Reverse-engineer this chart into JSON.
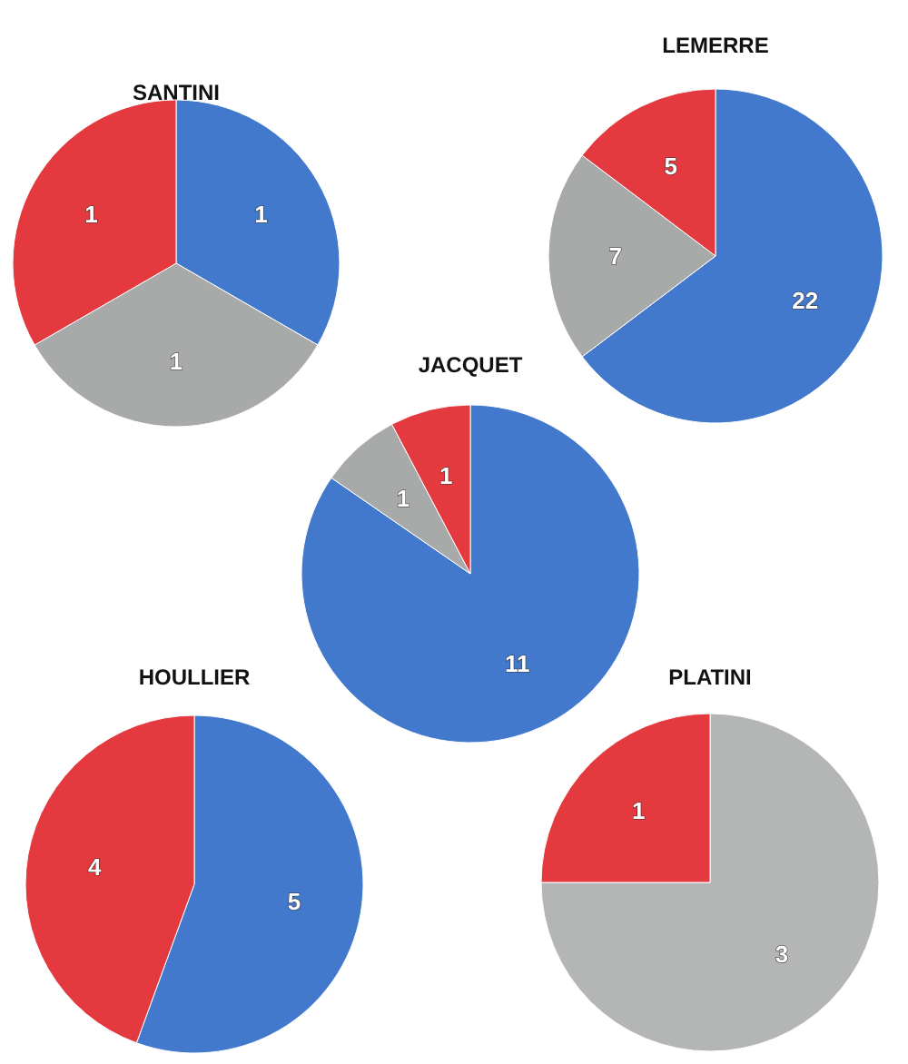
{
  "chart_data": [
    {
      "type": "pie",
      "title": "SANTINI",
      "categories": [
        null,
        null,
        null
      ],
      "values": [
        1,
        1,
        1
      ],
      "colors": [
        "#4379cc",
        "#a8aaaa",
        "#e4393f"
      ],
      "data_labels": true
    },
    {
      "type": "pie",
      "title": "LEMERRE",
      "categories": [
        null,
        null,
        null
      ],
      "values": [
        22,
        7,
        5
      ],
      "colors": [
        "#4379cc",
        "#a8aaaa",
        "#e4393f"
      ],
      "data_labels": true
    },
    {
      "type": "pie",
      "title": "JACQUET",
      "categories": [
        null,
        null,
        null
      ],
      "values": [
        11,
        1,
        1
      ],
      "colors": [
        "#4379cc",
        "#a8aaaa",
        "#e4393f"
      ],
      "data_labels": true
    },
    {
      "type": "pie",
      "title": "HOULLIER",
      "categories": [
        null,
        null
      ],
      "values": [
        5,
        4
      ],
      "colors": [
        "#4379cc",
        "#e4393f"
      ],
      "data_labels": true
    },
    {
      "type": "pie",
      "title": "PLATINI",
      "categories": [
        null,
        null
      ],
      "values": [
        3,
        1
      ],
      "colors": [
        "#b4b6b6",
        "#e4393f"
      ],
      "data_labels": true
    }
  ]
}
